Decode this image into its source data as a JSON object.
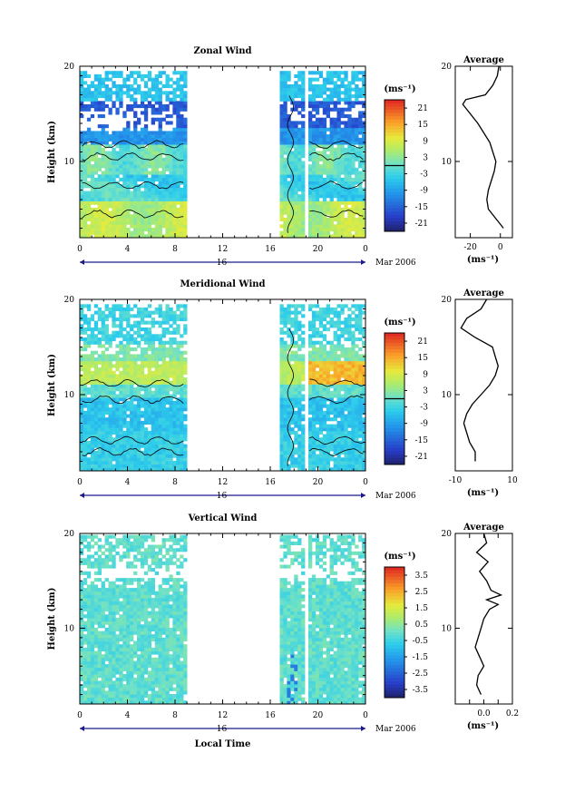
{
  "figure": {
    "date_label": "Mar 2006",
    "day_label": "16",
    "bottom_xlabel": "Local Time",
    "x_tick_labels": [
      "0",
      "4",
      "8",
      "12",
      "16",
      "20",
      "0"
    ],
    "unit_label": "(ms⁻¹)",
    "average_title": "Average",
    "height_label": "Height (km)"
  },
  "chart_data": [
    {
      "type": "heatmap",
      "title": "Zonal Wind",
      "xlabel": "",
      "ylabel": "Height (km)",
      "x_ticks": [
        0,
        4,
        8,
        12,
        16,
        20,
        24
      ],
      "xlim": [
        0,
        24
      ],
      "ylim": [
        2,
        20
      ],
      "y_ticks": [
        10,
        20
      ],
      "y_tick_labels": [
        "10",
        "20"
      ],
      "data_gaps_hours": [
        [
          8.8,
          16.8
        ],
        [
          18.7,
          19.2
        ]
      ],
      "colorbar": {
        "unit": "(ms⁻¹)",
        "labels": [
          "21",
          "15",
          "9",
          "3",
          "-3",
          "-9",
          "-15",
          "-21"
        ],
        "values": [
          21,
          15,
          9,
          3,
          -3,
          -9,
          -15,
          -21
        ],
        "zero_contour": true
      },
      "profile": {
        "title": "Average",
        "xlabel": "(ms⁻¹)",
        "x_ticks": [
          -20,
          0
        ],
        "x_tick_labels": [
          "-20",
          "0"
        ],
        "xlim": [
          -30,
          8
        ],
        "heights": [
          3,
          4,
          5,
          6,
          7,
          8,
          9,
          10,
          11,
          12,
          13,
          14,
          15,
          16,
          16.5,
          17,
          18,
          19,
          20
        ],
        "values": [
          2,
          -3,
          -8,
          -9,
          -8,
          -6,
          -4,
          -3,
          -5,
          -7,
          -11,
          -15,
          -20,
          -25,
          -23,
          -10,
          -5,
          -2,
          -1
        ]
      }
    },
    {
      "type": "heatmap",
      "title": "Meridional Wind",
      "xlabel": "",
      "ylabel": "Height (km)",
      "x_ticks": [
        0,
        4,
        8,
        12,
        16,
        20,
        24
      ],
      "xlim": [
        0,
        24
      ],
      "ylim": [
        2,
        20
      ],
      "y_ticks": [
        10,
        20
      ],
      "y_tick_labels": [
        "10",
        "20"
      ],
      "data_gaps_hours": [
        [
          8.8,
          16.8
        ],
        [
          18.7,
          19.2
        ]
      ],
      "colorbar": {
        "unit": "(ms⁻¹)",
        "labels": [
          "21",
          "15",
          "9",
          "3",
          "-3",
          "-9",
          "-15",
          "-21"
        ],
        "values": [
          21,
          15,
          9,
          3,
          -3,
          -9,
          -15,
          -21
        ],
        "zero_contour": true
      },
      "profile": {
        "title": "Average",
        "xlabel": "(ms⁻¹)",
        "x_ticks": [
          -10,
          10
        ],
        "x_tick_labels": [
          "-10",
          "10"
        ],
        "xlim": [
          -10,
          10
        ],
        "heights": [
          3,
          4,
          5,
          6,
          7,
          8,
          9,
          10,
          11,
          12,
          13,
          14,
          15,
          16,
          17,
          18,
          19,
          20
        ],
        "values": [
          -3,
          -3,
          -5,
          -6,
          -7,
          -6,
          -4,
          -1,
          2,
          4,
          5,
          4,
          3,
          -3,
          -8,
          -6,
          -1,
          1
        ]
      }
    },
    {
      "type": "heatmap",
      "title": "Vertical Wind",
      "xlabel": "Local Time",
      "ylabel": "Height (km)",
      "x_ticks": [
        0,
        4,
        8,
        12,
        16,
        20,
        24
      ],
      "xlim": [
        0,
        24
      ],
      "ylim": [
        2,
        20
      ],
      "y_ticks": [
        10,
        20
      ],
      "y_tick_labels": [
        "10",
        "20"
      ],
      "data_gaps_hours": [
        [
          8.8,
          16.8
        ],
        [
          18.7,
          19.2
        ]
      ],
      "colorbar": {
        "unit": "(ms⁻¹)",
        "labels": [
          "3.5",
          "2.5",
          "1.5",
          "0.5",
          "-0.5",
          "-1.5",
          "-2.5",
          "-3.5"
        ],
        "values": [
          3.5,
          2.5,
          1.5,
          0.5,
          -0.5,
          -1.5,
          -2.5,
          -3.5
        ],
        "zero_contour": false
      },
      "profile": {
        "title": "Average",
        "xlabel": "(ms⁻¹)",
        "x_ticks": [
          -0.1,
          0,
          0.1,
          0.2
        ],
        "x_tick_labels": [
          "",
          "0.0",
          "",
          "0.2"
        ],
        "xlim": [
          -0.2,
          0.2
        ],
        "heights": [
          3,
          4,
          5,
          6,
          7,
          8,
          9,
          10,
          11,
          12,
          12.5,
          13,
          13.5,
          14,
          15,
          16,
          17,
          18,
          19,
          20
        ],
        "values": [
          -0.02,
          -0.05,
          -0.04,
          0.0,
          -0.03,
          -0.06,
          -0.04,
          -0.02,
          0.0,
          0.04,
          0.1,
          0.02,
          0.12,
          0.05,
          0.02,
          -0.03,
          0.03,
          -0.05,
          0.02,
          0.0
        ]
      }
    }
  ]
}
